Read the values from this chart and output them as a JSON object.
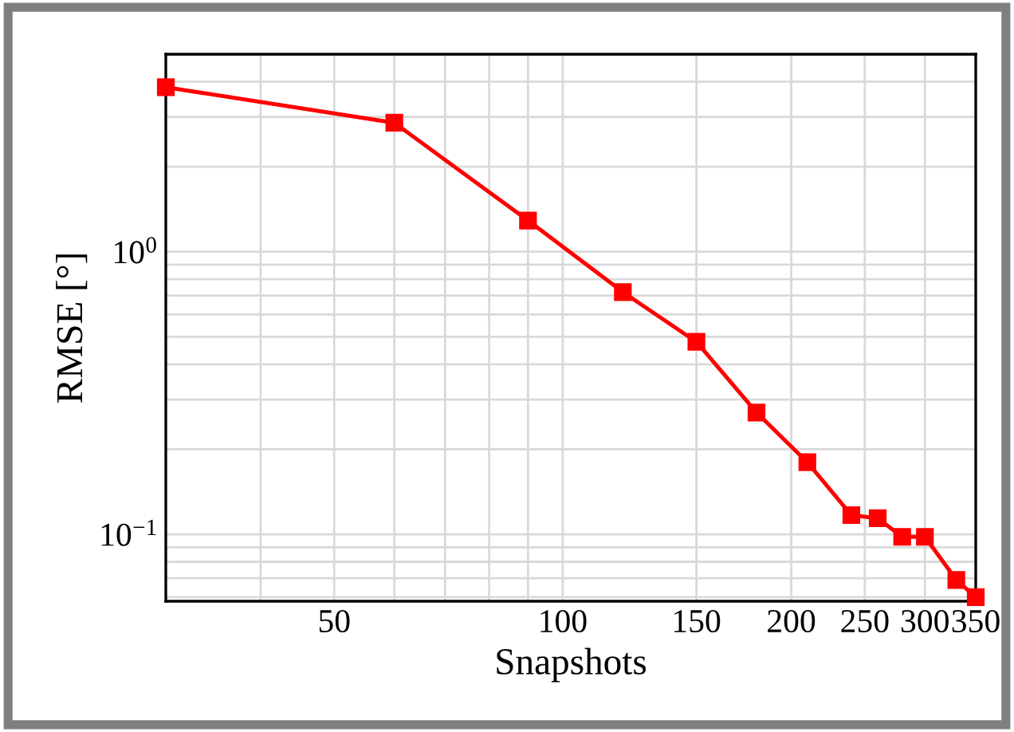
{
  "chart_data": {
    "type": "line",
    "xlabel": "Snapshots",
    "ylabel": "RMSE [°]",
    "x": [
      30,
      60,
      90,
      120,
      150,
      180,
      210,
      240,
      260,
      280,
      300,
      330,
      350
    ],
    "series": [
      {
        "color": "#ff0000",
        "values": [
          3.82,
          2.86,
          1.29,
          0.72,
          0.48,
          0.27,
          0.18,
          0.117,
          0.114,
          0.098,
          0.098,
          0.069,
          0.06
        ]
      }
    ],
    "log": "xy",
    "xlim": [
      30,
      350
    ],
    "xticks": [
      50,
      100,
      150,
      200,
      250,
      300,
      350
    ],
    "ylim": [
      0.058,
      5
    ],
    "yticks": [
      {
        "value": 1,
        "label": "10$^{0}$"
      },
      {
        "value": 0.1,
        "label": "10$^{−1}$"
      }
    ],
    "grid": true,
    "marker": "square",
    "line_style": "solid"
  }
}
